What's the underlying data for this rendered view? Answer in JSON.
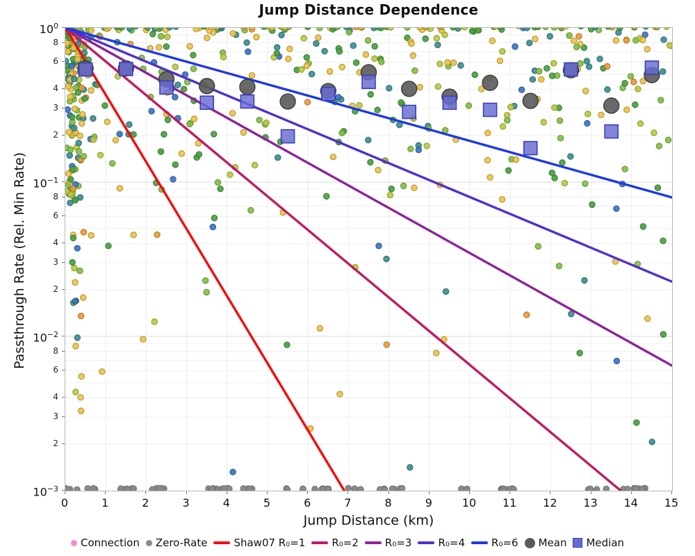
{
  "title": "Jump Distance Dependence",
  "axes": {
    "x": {
      "label": "Jump Distance (km)",
      "ticks": [
        0,
        1,
        2,
        3,
        4,
        5,
        6,
        7,
        8,
        9,
        10,
        11,
        12,
        13,
        14,
        15
      ]
    },
    "y": {
      "label": "Passthrough Rate (Rel. Min Rate)",
      "major_exponents": [
        0,
        -1,
        -2,
        -3
      ],
      "minor_digits": [
        8,
        6,
        4,
        3,
        2
      ]
    }
  },
  "chart_data": {
    "type": "scatter",
    "title": "Jump Distance Dependence",
    "xlabel": "Jump Distance (km)",
    "ylabel": "Passthrough Rate (Rel. Min Rate)",
    "xlim": [
      0,
      15
    ],
    "yscale": "log",
    "ylim": [
      0.001,
      1.0
    ],
    "grid": true,
    "bins_km": [
      0.5,
      1.5,
      2.5,
      3.5,
      4.5,
      5.5,
      6.5,
      7.5,
      8.5,
      9.5,
      10.5,
      11.5,
      12.5,
      13.5,
      14.5
    ],
    "mean_rates": [
      0.546,
      0.546,
      0.464,
      0.419,
      0.414,
      0.333,
      0.389,
      0.515,
      0.402,
      0.358,
      0.44,
      0.336,
      0.531,
      0.313,
      0.494
    ],
    "median_rates": [
      0.537,
      0.541,
      0.41,
      0.327,
      0.333,
      0.198,
      0.373,
      0.446,
      0.285,
      0.327,
      0.294,
      0.166,
      0.537,
      0.213,
      0.552
    ],
    "model_lines": [
      {
        "label": "Shaw07 R₀=1",
        "color": "#F50A0A",
        "decades_per_km": 0.435
      },
      {
        "label": "R₀=2",
        "color": "#C01A62",
        "decades_per_km": 0.2185
      },
      {
        "label": "R₀=3",
        "color": "#8C2399",
        "decades_per_km": 0.146
      },
      {
        "label": "R₀=4",
        "color": "#4F2FD0",
        "decades_per_km": 0.1097
      },
      {
        "label": "R₀=6",
        "color": "#1D38E6",
        "decades_per_km": 0.0733
      }
    ],
    "zero_rate_value": 0.001,
    "scatter": {
      "seed": 20240613,
      "point_radius": 4.2,
      "palette": [
        {
          "name": "gold",
          "fill": "#EAC44C",
          "stroke": "#B08C24",
          "w": 0.27
        },
        {
          "name": "orange",
          "fill": "#EB9A3D",
          "stroke": "#B56E1C",
          "w": 0.05
        },
        {
          "name": "olive",
          "fill": "#BCC944",
          "stroke": "#8B9726",
          "w": 0.12
        },
        {
          "name": "lightgreen",
          "fill": "#86BE45",
          "stroke": "#59922B",
          "w": 0.16
        },
        {
          "name": "green",
          "fill": "#4CA044",
          "stroke": "#2E7A29",
          "w": 0.21
        },
        {
          "name": "teal",
          "fill": "#3F8E92",
          "stroke": "#276A6F",
          "w": 0.13
        },
        {
          "name": "steelblue",
          "fill": "#3C74C2",
          "stroke": "#27539A",
          "w": 0.06
        }
      ],
      "left_cluster": {
        "count": 150,
        "x_sigma_km": 0.24,
        "shallow_frac": 0.8,
        "shallow_max_depth": 1.1,
        "deep_extra_depth": 1.55
      },
      "field": {
        "count": 360,
        "shallow_frac": 0.85,
        "shallow_max_depth": 1.05,
        "deep_extra_depth": 1.9
      },
      "top_row": {
        "count": 70
      },
      "zero_rate_dots": {
        "clumps": 34,
        "max_per_clump": 5,
        "spread_km": 0.36,
        "radius": 4.3,
        "fill": "#8A8A8A",
        "stroke": "#747474"
      }
    },
    "mean_style": {
      "fill": "#5A5A5A",
      "stroke": "#3C3C3C",
      "radius": 11
    },
    "median_style": {
      "fill": "#666BD2",
      "stroke": "#3A3FB8",
      "size": 19
    }
  },
  "legend": {
    "items": [
      {
        "label": "Connection",
        "marker": "dot",
        "color": "#F48BD0"
      },
      {
        "label": "Zero-Rate",
        "marker": "dot",
        "color": "#8A8A8A"
      },
      {
        "label": "Shaw07 R₀=1",
        "marker": "line",
        "color": "#F50A0A"
      },
      {
        "label": "R₀=2",
        "marker": "line",
        "color": "#C01A62"
      },
      {
        "label": "R₀=3",
        "marker": "line",
        "color": "#8C2399"
      },
      {
        "label": "R₀=4",
        "marker": "line",
        "color": "#4F2FD0"
      },
      {
        "label": "R₀=6",
        "marker": "line",
        "color": "#1D38E6"
      },
      {
        "label": "Mean",
        "marker": "bigdot",
        "color": "#5A5A5A"
      },
      {
        "label": "Median",
        "marker": "square",
        "color": "#666BD2"
      }
    ]
  },
  "grid_colors": {
    "minor": "#efefef",
    "major": "#e0e0e0"
  }
}
